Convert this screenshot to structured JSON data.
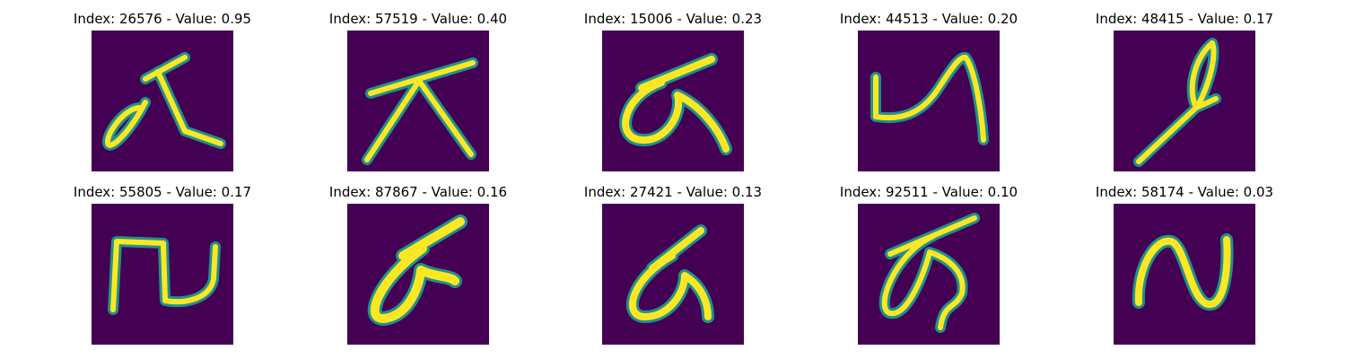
{
  "colors": {
    "background": "#440154",
    "stroke_mid": "#21918c",
    "stroke_high": "#fde725"
  },
  "rows": [
    {
      "panels": [
        {
          "title": "Index: 26576 - Value: 0.95",
          "glyph": "brush-stroke-character-1"
        },
        {
          "title": "Index: 57519 - Value: 0.40",
          "glyph": "brush-stroke-character-2"
        },
        {
          "title": "Index: 15006 - Value: 0.23",
          "glyph": "brush-stroke-character-3"
        },
        {
          "title": "Index: 44513 - Value: 0.20",
          "glyph": "brush-stroke-character-4"
        },
        {
          "title": "Index: 48415 - Value: 0.17",
          "glyph": "brush-stroke-character-5"
        }
      ]
    },
    {
      "panels": [
        {
          "title": "Index: 55805 - Value: 0.17",
          "glyph": "brush-stroke-character-6"
        },
        {
          "title": "Index: 87867 - Value: 0.16",
          "glyph": "brush-stroke-character-7"
        },
        {
          "title": "Index: 27421 - Value: 0.13",
          "glyph": "brush-stroke-character-8"
        },
        {
          "title": "Index: 92511 - Value: 0.10",
          "glyph": "brush-stroke-character-9"
        },
        {
          "title": "Index: 58174 - Value: 0.03",
          "glyph": "brush-stroke-character-10"
        }
      ]
    }
  ]
}
